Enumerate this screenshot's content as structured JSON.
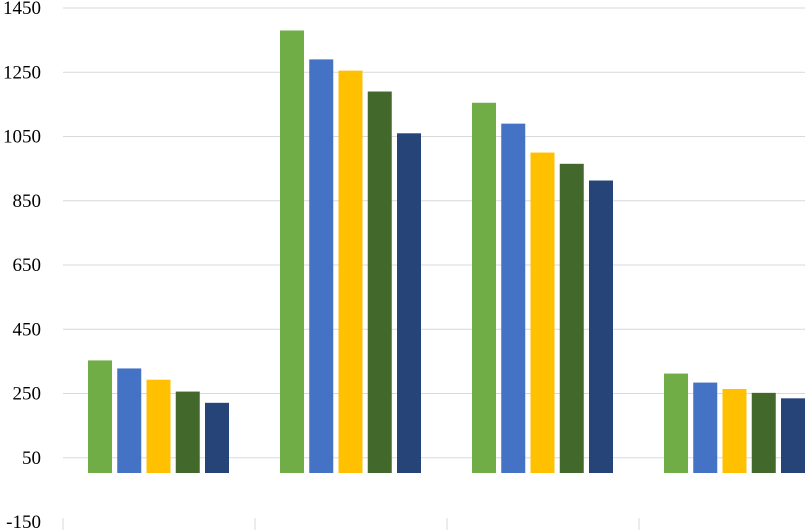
{
  "chart_data": {
    "type": "bar",
    "title": "",
    "xlabel": "",
    "ylabel": "",
    "ylim": [
      -150,
      1450
    ],
    "yticks": [
      -150,
      50,
      250,
      450,
      650,
      850,
      1050,
      1250,
      1450
    ],
    "ytick_labels": [
      "-150",
      "50",
      "250",
      "450",
      "650",
      "850",
      "1050",
      "1250",
      "1450"
    ],
    "categories": [
      "",
      "",
      "",
      ""
    ],
    "grid": true,
    "legend": "none",
    "series": [
      {
        "color": "#70ad47",
        "values": [
          353,
          1380,
          1155,
          312
        ]
      },
      {
        "color": "#4472c4",
        "values": [
          328,
          1290,
          1090,
          284
        ]
      },
      {
        "color": "#ffc000",
        "values": [
          293,
          1255,
          1000,
          264
        ]
      },
      {
        "color": "#43682b",
        "values": [
          256,
          1190,
          965,
          252
        ]
      },
      {
        "color": "#264478",
        "values": [
          221,
          1060,
          913,
          235
        ]
      }
    ]
  }
}
